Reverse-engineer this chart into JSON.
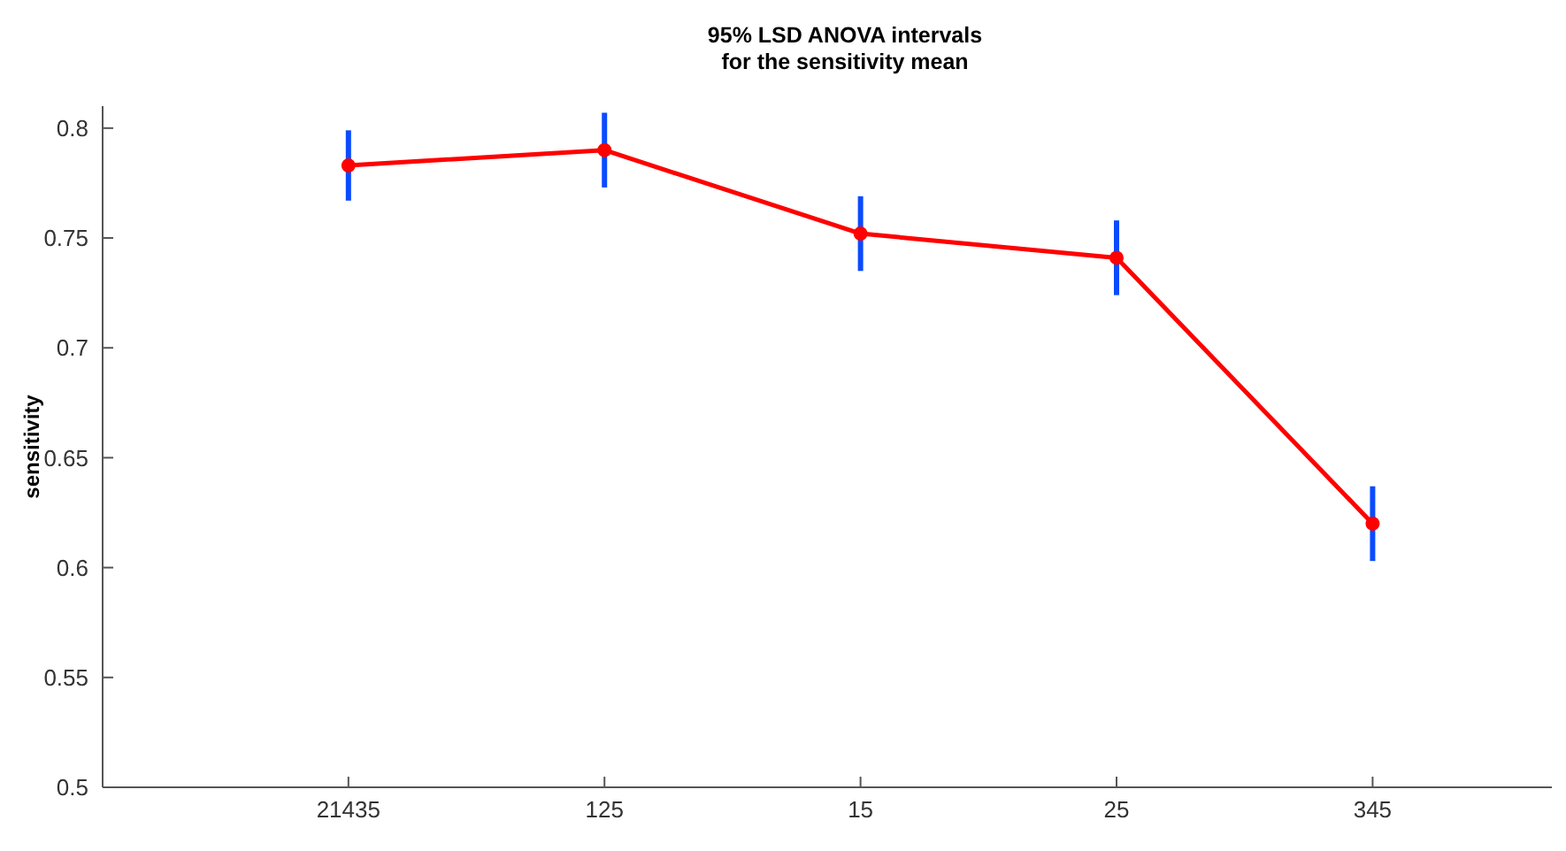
{
  "chart_data": {
    "type": "line",
    "title": "95% LSD ANOVA intervals\nfor the sensitivity mean",
    "ylabel": "sensitivity",
    "categories": [
      "21435",
      "125",
      "15",
      "25",
      "345"
    ],
    "series": [
      {
        "color": "#ff0000",
        "values": [
          0.783,
          0.79,
          0.752,
          0.741,
          0.62
        ],
        "errors": [
          0.016,
          0.017,
          0.017,
          0.017,
          0.017
        ]
      }
    ],
    "ylim": [
      0.5,
      0.81
    ],
    "yticks": [
      0.5,
      0.55,
      0.6,
      0.65,
      0.7,
      0.75,
      0.8
    ],
    "marker": "circle",
    "line_style": "solid",
    "grid": false
  }
}
